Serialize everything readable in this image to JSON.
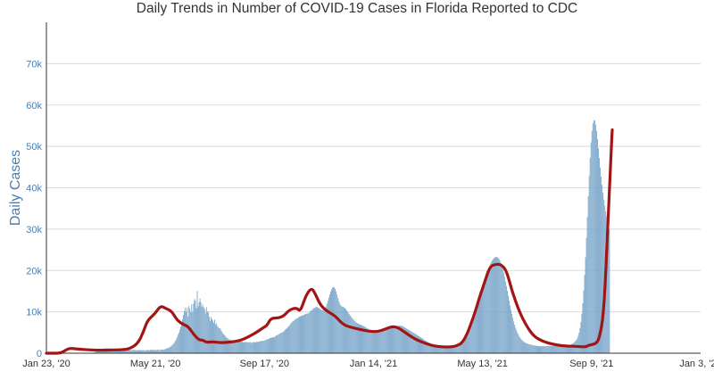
{
  "chart_data": {
    "type": "bar",
    "title": "Daily Trends in Number of COVID-19 Cases in Florida Reported to CDC",
    "xlabel": "",
    "ylabel": "Daily Cases",
    "x_tick_labels": [
      "Jan 23, '20",
      "May 21, '20",
      "Sep 17, '20",
      "Jan 14, '21",
      "May 13, '21",
      "Sep 9, '21",
      "Jan 3, '22"
    ],
    "y_tick_labels": [
      "0",
      "10k",
      "20k",
      "30k",
      "40k",
      "50k",
      "60k",
      "70k"
    ],
    "y_tick_values": [
      0,
      10000,
      20000,
      30000,
      40000,
      50000,
      60000,
      70000
    ],
    "ylim": [
      0,
      80000
    ],
    "x_range_days": [
      0,
      711
    ],
    "grid": "horizontal",
    "series": [
      {
        "kind": "bars",
        "day_index_start": 0,
        "values": [
          0,
          0,
          0,
          0,
          0,
          0,
          0,
          0,
          0,
          0,
          0,
          0,
          0,
          0,
          0,
          0,
          0,
          0,
          0,
          0,
          0,
          0,
          0,
          0,
          0,
          0,
          0,
          0,
          0,
          0,
          0,
          0,
          0,
          0,
          0,
          0,
          0,
          0,
          0,
          0,
          0,
          0,
          0,
          0,
          0,
          0,
          45,
          48,
          92,
          116,
          111,
          126,
          218,
          253,
          286,
          424,
          473,
          485,
          611,
          642,
          737,
          767,
          861,
          1173,
          1025,
          1071,
          1152,
          1147,
          1049,
          1104,
          1166,
          1044,
          1029,
          1049,
          1003,
          1129,
          1008,
          1040,
          963,
          1054,
          939,
          904,
          975,
          935,
          1001,
          896,
          881,
          955,
          902,
          832,
          771,
          833,
          807,
          739,
          784,
          862,
          757,
          771,
          654,
          791,
          761,
          750,
          731,
          735,
          734,
          764,
          713,
          661,
          757,
          760,
          790,
          762,
          711,
          832,
          802,
          785,
          788,
          783,
          735,
          897,
          745,
          881,
          818,
          743,
          842,
          903,
          909,
          855,
          879,
          989,
          1052,
          1194,
          1190,
          1336,
          1395,
          1586,
          1787,
          2012,
          2251,
          2515,
          2967,
          3326,
          3837,
          4448,
          4971,
          5705,
          6409,
          7238,
          8188,
          9227,
          10226,
          10998,
          9972,
          11050,
          8877,
          11426,
          10811,
          9983,
          11813,
          9907,
          12007,
          13115,
          12734,
          10876,
          15058,
          11346,
          12335,
          13219,
          12289,
          11227,
          11761,
          11155,
          10722,
          9659,
          11138,
          10021,
          10040,
          8809,
          7797,
          8751,
          8240,
          7924,
          7299,
          8127,
          6962,
          7214,
          6542,
          6288,
          6034,
          6031,
          5540,
          5201,
          4754,
          4571,
          4298,
          3996,
          3730,
          3639,
          3417,
          3204,
          3277,
          3082,
          3058,
          2876,
          3081,
          2935,
          2983,
          2906,
          3019,
          3018,
          2919,
          2866,
          2755,
          2822,
          2683,
          2732,
          2671,
          2698,
          2678,
          2709,
          2576,
          2683,
          2656,
          2530,
          2540,
          2693,
          2711,
          2626,
          2744,
          2688,
          2763,
          2807,
          2881,
          2874,
          2999,
          2989,
          3015,
          3035,
          3236,
          3265,
          3369,
          3405,
          3553,
          3676,
          3692,
          3774,
          3819,
          3935,
          3847,
          4145,
          4290,
          4383,
          4491,
          4639,
          4759,
          4936,
          4996,
          5091,
          5278,
          5518,
          5779,
          5957,
          6171,
          6462,
          6644,
          6999,
          7275,
          7498,
          7776,
          7891,
          8088,
          8296,
          8392,
          8506,
          8685,
          8859,
          8932,
          9044,
          9169,
          9119,
          9278,
          9431,
          9539,
          9532,
          9602,
          9683,
          9887,
          10187,
          10331,
          10497,
          10753,
          10963,
          10922,
          11182,
          11232,
          11066,
          10965,
          10863,
          10646,
          10481,
          10383,
          10435,
          10589,
          10905,
          11317,
          11962,
          12727,
          13442,
          14170,
          14878,
          15437,
          15839,
          15993,
          15914,
          15546,
          14937,
          14155,
          13339,
          12587,
          11983,
          11562,
          11329,
          11234,
          11149,
          11016,
          10802,
          10519,
          10197,
          9865,
          9531,
          9204,
          8890,
          8585,
          8300,
          8041,
          7808,
          7601,
          7423,
          7270,
          7138,
          7024,
          6923,
          6829,
          6736,
          6640,
          6536,
          6423,
          6300,
          6168,
          6027,
          5881,
          5732,
          5586,
          5446,
          5318,
          5205,
          5110,
          5036,
          4986,
          4960,
          4957,
          4978,
          5018,
          5075,
          5143,
          5218,
          5296,
          5375,
          5455,
          5536,
          5617,
          5697,
          5775,
          5850,
          5924,
          5999,
          6076,
          6159,
          6250,
          6346,
          6443,
          6534,
          6610,
          6664,
          6687,
          6675,
          6629,
          6549,
          6442,
          6315,
          6176,
          6031,
          5887,
          5748,
          5615,
          5487,
          5362,
          5238,
          5111,
          4979,
          4843,
          4702,
          4556,
          4406,
          4255,
          4103,
          3951,
          3799,
          3649,
          3501,
          3355,
          3212,
          3072,
          2935,
          2802,
          2673,
          2550,
          2432,
          2321,
          2217,
          2122,
          2035,
          1958,
          1892,
          1836,
          1791,
          1756,
          1731,
          1713,
          1702,
          1696,
          1694,
          1696,
          1699,
          1703,
          1706,
          1708,
          1709,
          1710,
          1712,
          1717,
          1727,
          1744,
          1770,
          1806,
          1855,
          1917,
          1992,
          2081,
          2184,
          2303,
          2441,
          2601,
          2790,
          3015,
          3283,
          3602,
          3978,
          4418,
          4923,
          5491,
          6116,
          6790,
          7500,
          8233,
          8979,
          9726,
          10468,
          11202,
          11926,
          12644,
          13360,
          14081,
          14810,
          15552,
          16304,
          17064,
          17822,
          18567,
          19289,
          19974,
          20612,
          21196,
          21719,
          22177,
          22565,
          22879,
          23113,
          23259,
          23308,
          23251,
          23080,
          22787,
          22369,
          21823,
          21151,
          20359,
          19456,
          18455,
          17376,
          16239,
          15069,
          13888,
          12719,
          11584,
          10500,
          9481,
          8535,
          7668,
          6883,
          6178,
          5552,
          5000,
          4518,
          4100,
          3740,
          3432,
          3170,
          2949,
          2765,
          2613,
          2487,
          2383,
          2297,
          2224,
          2160,
          2102,
          2048,
          1996,
          1946,
          1898,
          1853,
          1812,
          1775,
          1745,
          1721,
          1703,
          1692,
          1687,
          1687,
          1691,
          1697,
          1704,
          1712,
          1720,
          1728,
          1736,
          1744,
          1752,
          1759,
          1765,
          1769,
          1770,
          1768,
          1762,
          1751,
          1735,
          1715,
          1692,
          1668,
          1644,
          1623,
          1609,
          1604,
          1612,
          1635,
          1676,
          1737,
          1818,
          1918,
          2034,
          2165,
          2309,
          2471,
          2658,
          2887,
          3185,
          3593,
          4164,
          4965,
          6073,
          7574,
          9550,
          12072,
          15186,
          18898,
          23166,
          27886,
          32893,
          37967,
          42850,
          47273,
          50988,
          53794,
          55585,
          56361,
          56209,
          55273,
          53729,
          51760,
          49542,
          47224,
          44927,
          42735,
          40701,
          38845,
          37167,
          35651,
          34282,
          33040,
          31912,
          30880,
          29933
        ],
        "color": "#7aa6c9"
      },
      {
        "kind": "line",
        "name": "",
        "points": [
          [
            0,
            0
          ],
          [
            14,
            0
          ],
          [
            18,
            300
          ],
          [
            22,
            900
          ],
          [
            26,
            1200
          ],
          [
            34,
            1000
          ],
          [
            46,
            800
          ],
          [
            58,
            700
          ],
          [
            70,
            800
          ],
          [
            82,
            800
          ],
          [
            91,
            1100
          ],
          [
            100,
            2500
          ],
          [
            106,
            5500
          ],
          [
            110,
            8000
          ],
          [
            118,
            9500
          ],
          [
            124,
            11500
          ],
          [
            130,
            10800
          ],
          [
            136,
            10200
          ],
          [
            142,
            8000
          ],
          [
            148,
            7000
          ],
          [
            154,
            6500
          ],
          [
            160,
            4500
          ],
          [
            166,
            3200
          ],
          [
            170,
            3200
          ],
          [
            174,
            2600
          ],
          [
            180,
            2800
          ],
          [
            190,
            2500
          ],
          [
            200,
            2700
          ],
          [
            210,
            3000
          ],
          [
            220,
            4000
          ],
          [
            228,
            5000
          ],
          [
            236,
            6200
          ],
          [
            240,
            6800
          ],
          [
            244,
            8500
          ],
          [
            252,
            8500
          ],
          [
            258,
            9000
          ],
          [
            264,
            10500
          ],
          [
            272,
            11000
          ],
          [
            276,
            10000
          ],
          [
            282,
            14000
          ],
          [
            288,
            15800
          ],
          [
            292,
            14500
          ],
          [
            298,
            11500
          ],
          [
            306,
            10000
          ],
          [
            314,
            9000
          ],
          [
            322,
            7000
          ],
          [
            330,
            6300
          ],
          [
            340,
            5800
          ],
          [
            350,
            5300
          ],
          [
            360,
            5200
          ],
          [
            368,
            5800
          ],
          [
            376,
            6500
          ],
          [
            382,
            6200
          ],
          [
            390,
            5000
          ],
          [
            400,
            3500
          ],
          [
            410,
            2500
          ],
          [
            420,
            1800
          ],
          [
            430,
            1500
          ],
          [
            440,
            1500
          ],
          [
            446,
            1800
          ],
          [
            452,
            2500
          ],
          [
            458,
            5000
          ],
          [
            462,
            7500
          ],
          [
            466,
            10000
          ],
          [
            470,
            13000
          ],
          [
            476,
            17000
          ],
          [
            482,
            21000
          ],
          [
            488,
            21500
          ],
          [
            494,
            21500
          ],
          [
            500,
            20000
          ],
          [
            506,
            15000
          ],
          [
            514,
            10000
          ],
          [
            522,
            6500
          ],
          [
            530,
            4000
          ],
          [
            540,
            2800
          ],
          [
            550,
            2200
          ],
          [
            560,
            1800
          ],
          [
            570,
            1700
          ],
          [
            580,
            1600
          ],
          [
            586,
            1500
          ],
          [
            590,
            2000
          ],
          [
            596,
            2200
          ],
          [
            600,
            3000
          ],
          [
            604,
            7000
          ],
          [
            606,
            12000
          ],
          [
            608,
            20000
          ],
          [
            610,
            30000
          ],
          [
            612,
            40000
          ],
          [
            614,
            50000
          ],
          [
            615,
            54000
          ]
        ],
        "color": "#a31515"
      }
    ]
  }
}
